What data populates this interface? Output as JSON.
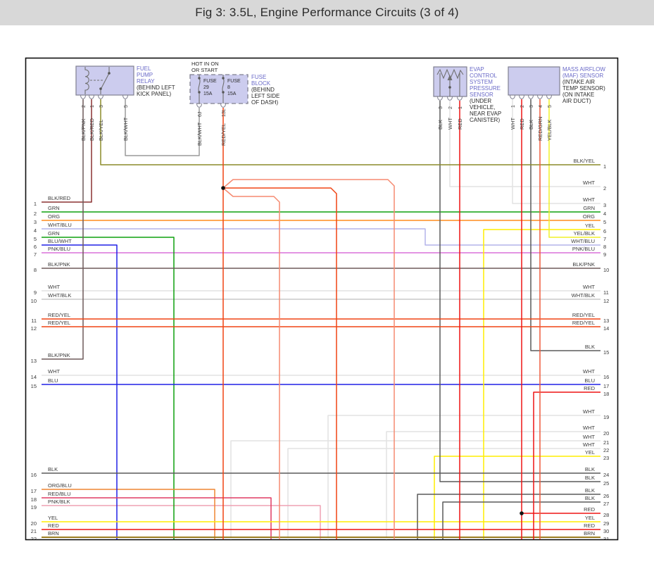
{
  "title_bar": {
    "text": "Fig 3: 3.5L, Engine Performance Circuits (3 of 4)"
  },
  "components": {
    "fuel_pump_relay": {
      "name_lines": [
        "FUEL",
        "PUMP",
        "RELAY"
      ],
      "location_lines": [
        "(BEHIND LEFT",
        "KICK PANEL)"
      ],
      "pins": [
        {
          "num": "2",
          "wire": "BLK/PNK"
        },
        {
          "num": "1",
          "wire": "BLK/RED"
        },
        {
          "num": "3",
          "wire": "BLK/YEL"
        },
        {
          "num": "5",
          "wire": "BLK/WHT"
        }
      ]
    },
    "fuse_block": {
      "header_lines": [
        "HOT IN ON",
        "OR START"
      ],
      "name_lines": [
        "FUSE",
        "BLOCK"
      ],
      "location_lines": [
        "(BEHIND",
        "LEFT SIDE",
        "OF DASH)"
      ],
      "fuses": [
        {
          "label": "FUSE",
          "number": "29",
          "rating": "15A"
        },
        {
          "label": "FUSE",
          "number": "8",
          "rating": "15A"
        }
      ],
      "pins": [
        {
          "num": "6J",
          "wire": "BLK/WHT"
        },
        {
          "num": "13L",
          "wire": "RED/YEL"
        }
      ]
    },
    "evap_pressure_sensor": {
      "name_lines": [
        "EVAP",
        "CONTROL",
        "SYSTEM",
        "PRESSURE",
        "SENSOR"
      ],
      "location_lines": [
        "(UNDER",
        "VEHICLE,",
        "NEAR EVAP",
        "CANISTER)"
      ],
      "pins": [
        {
          "num": "3",
          "wire": "BLK"
        },
        {
          "num": "2",
          "wire": "WHT"
        },
        {
          "num": "1",
          "wire": "RED"
        }
      ]
    },
    "maf_sensor": {
      "name_lines": [
        "MASS AIRFLOW",
        "(MAF) SENSOR"
      ],
      "location_lines": [
        "(INTAKE AIR",
        "TEMP SENSOR)",
        "(ON INTAKE",
        "AIR DUCT)"
      ],
      "pins": [
        {
          "num": "1",
          "wire": "WHT"
        },
        {
          "num": "2",
          "wire": "RED"
        },
        {
          "num": "3",
          "wire": "BLK"
        },
        {
          "num": "4",
          "wire": "RED/GRN"
        },
        {
          "num": "5",
          "wire": "YEL/BLK"
        }
      ]
    }
  },
  "left_rows": [
    {
      "num": "1",
      "label": "BLK/RED"
    },
    {
      "num": "2",
      "label": "GRN"
    },
    {
      "num": "3",
      "label": "ORG"
    },
    {
      "num": "4",
      "label": "WHT/BLU"
    },
    {
      "num": "5",
      "label": "GRN"
    },
    {
      "num": "6",
      "label": "BLU/WHT"
    },
    {
      "num": "7",
      "label": "PNK/BLU"
    },
    {
      "num": "8",
      "label": "BLK/PNK"
    },
    {
      "num": "9",
      "label": "WHT"
    },
    {
      "num": "10",
      "label": "WHT/BLK"
    },
    {
      "num": "11",
      "label": "RED/YEL"
    },
    {
      "num": "12",
      "label": "RED/YEL"
    },
    {
      "num": "13",
      "label": "BLK/PNK"
    },
    {
      "num": "14",
      "label": "WHT"
    },
    {
      "num": "15",
      "label": "BLU"
    },
    {
      "num": "16",
      "label": "BLK"
    },
    {
      "num": "17",
      "label": "ORG/BLU"
    },
    {
      "num": "18",
      "label": "RED/BLU"
    },
    {
      "num": "19",
      "label": "PNK/BLK"
    },
    {
      "num": "20",
      "label": "YEL"
    },
    {
      "num": "21",
      "label": "RED"
    },
    {
      "num": "22",
      "label": "BRN"
    }
  ],
  "right_rows": [
    {
      "num": "1",
      "label": "BLK/YEL"
    },
    {
      "num": "2",
      "label": "WHT"
    },
    {
      "num": "3",
      "label": "WHT"
    },
    {
      "num": "4",
      "label": "GRN"
    },
    {
      "num": "5",
      "label": "ORG"
    },
    {
      "num": "6",
      "label": "YEL"
    },
    {
      "num": "7",
      "label": "YEL/BLK"
    },
    {
      "num": "8",
      "label": "WHT/BLU"
    },
    {
      "num": "9",
      "label": "PNK/BLU"
    },
    {
      "num": "10",
      "label": "BLK/PNK"
    },
    {
      "num": "11",
      "label": "WHT"
    },
    {
      "num": "12",
      "label": "WHT/BLK"
    },
    {
      "num": "13",
      "label": "RED/YEL"
    },
    {
      "num": "14",
      "label": "RED/YEL"
    },
    {
      "num": "15",
      "label": "BLK"
    },
    {
      "num": "16",
      "label": "WHT"
    },
    {
      "num": "17",
      "label": "BLU"
    },
    {
      "num": "18",
      "label": "RED"
    },
    {
      "num": "19",
      "label": "WHT"
    },
    {
      "num": "20",
      "label": "WHT"
    },
    {
      "num": "21",
      "label": "WHT"
    },
    {
      "num": "22",
      "label": "WHT"
    },
    {
      "num": "23",
      "label": "YEL"
    },
    {
      "num": "24",
      "label": "BLK"
    },
    {
      "num": "25",
      "label": "BLK"
    },
    {
      "num": "26",
      "label": "BLK"
    },
    {
      "num": "27",
      "label": "BLK"
    },
    {
      "num": "28",
      "label": "RED"
    },
    {
      "num": "29",
      "label": "YEL"
    },
    {
      "num": "30",
      "label": "RED"
    },
    {
      "num": "31",
      "label": "BRN"
    }
  ],
  "wire_colors": {
    "BLK/RED": "#8c3232",
    "GRN": "#0fa00f",
    "ORG": "#ff8c1e",
    "WHT/BLU": "#b4b4ea",
    "BLU/WHT": "#2020e6",
    "PNK/BLU": "#da70da",
    "BLK/PNK": "#6e5a5a",
    "WHT": "#e2e2e2",
    "WHT/BLK": "#c8c8c8",
    "RED/YEL": "#f04414",
    "BLK": "#5a5a5a",
    "BLU": "#2020e6",
    "ORG/BLU": "#ef8632",
    "RED/BLU": "#e13c64",
    "PNK/BLK": "#efa0b4",
    "YEL": "#ffee00",
    "RED": "#ee1414",
    "BRN": "#9b7d20",
    "BLK/YEL": "#8c8c28",
    "YEL/BLK": "#f0f028",
    "RED/GRN": "#ef5a3c",
    "BLK/WHT": "#9a9a9a",
    "component_fill": "#ccccee",
    "component_border": "#808090",
    "label_blue": "#6a6ac8"
  }
}
